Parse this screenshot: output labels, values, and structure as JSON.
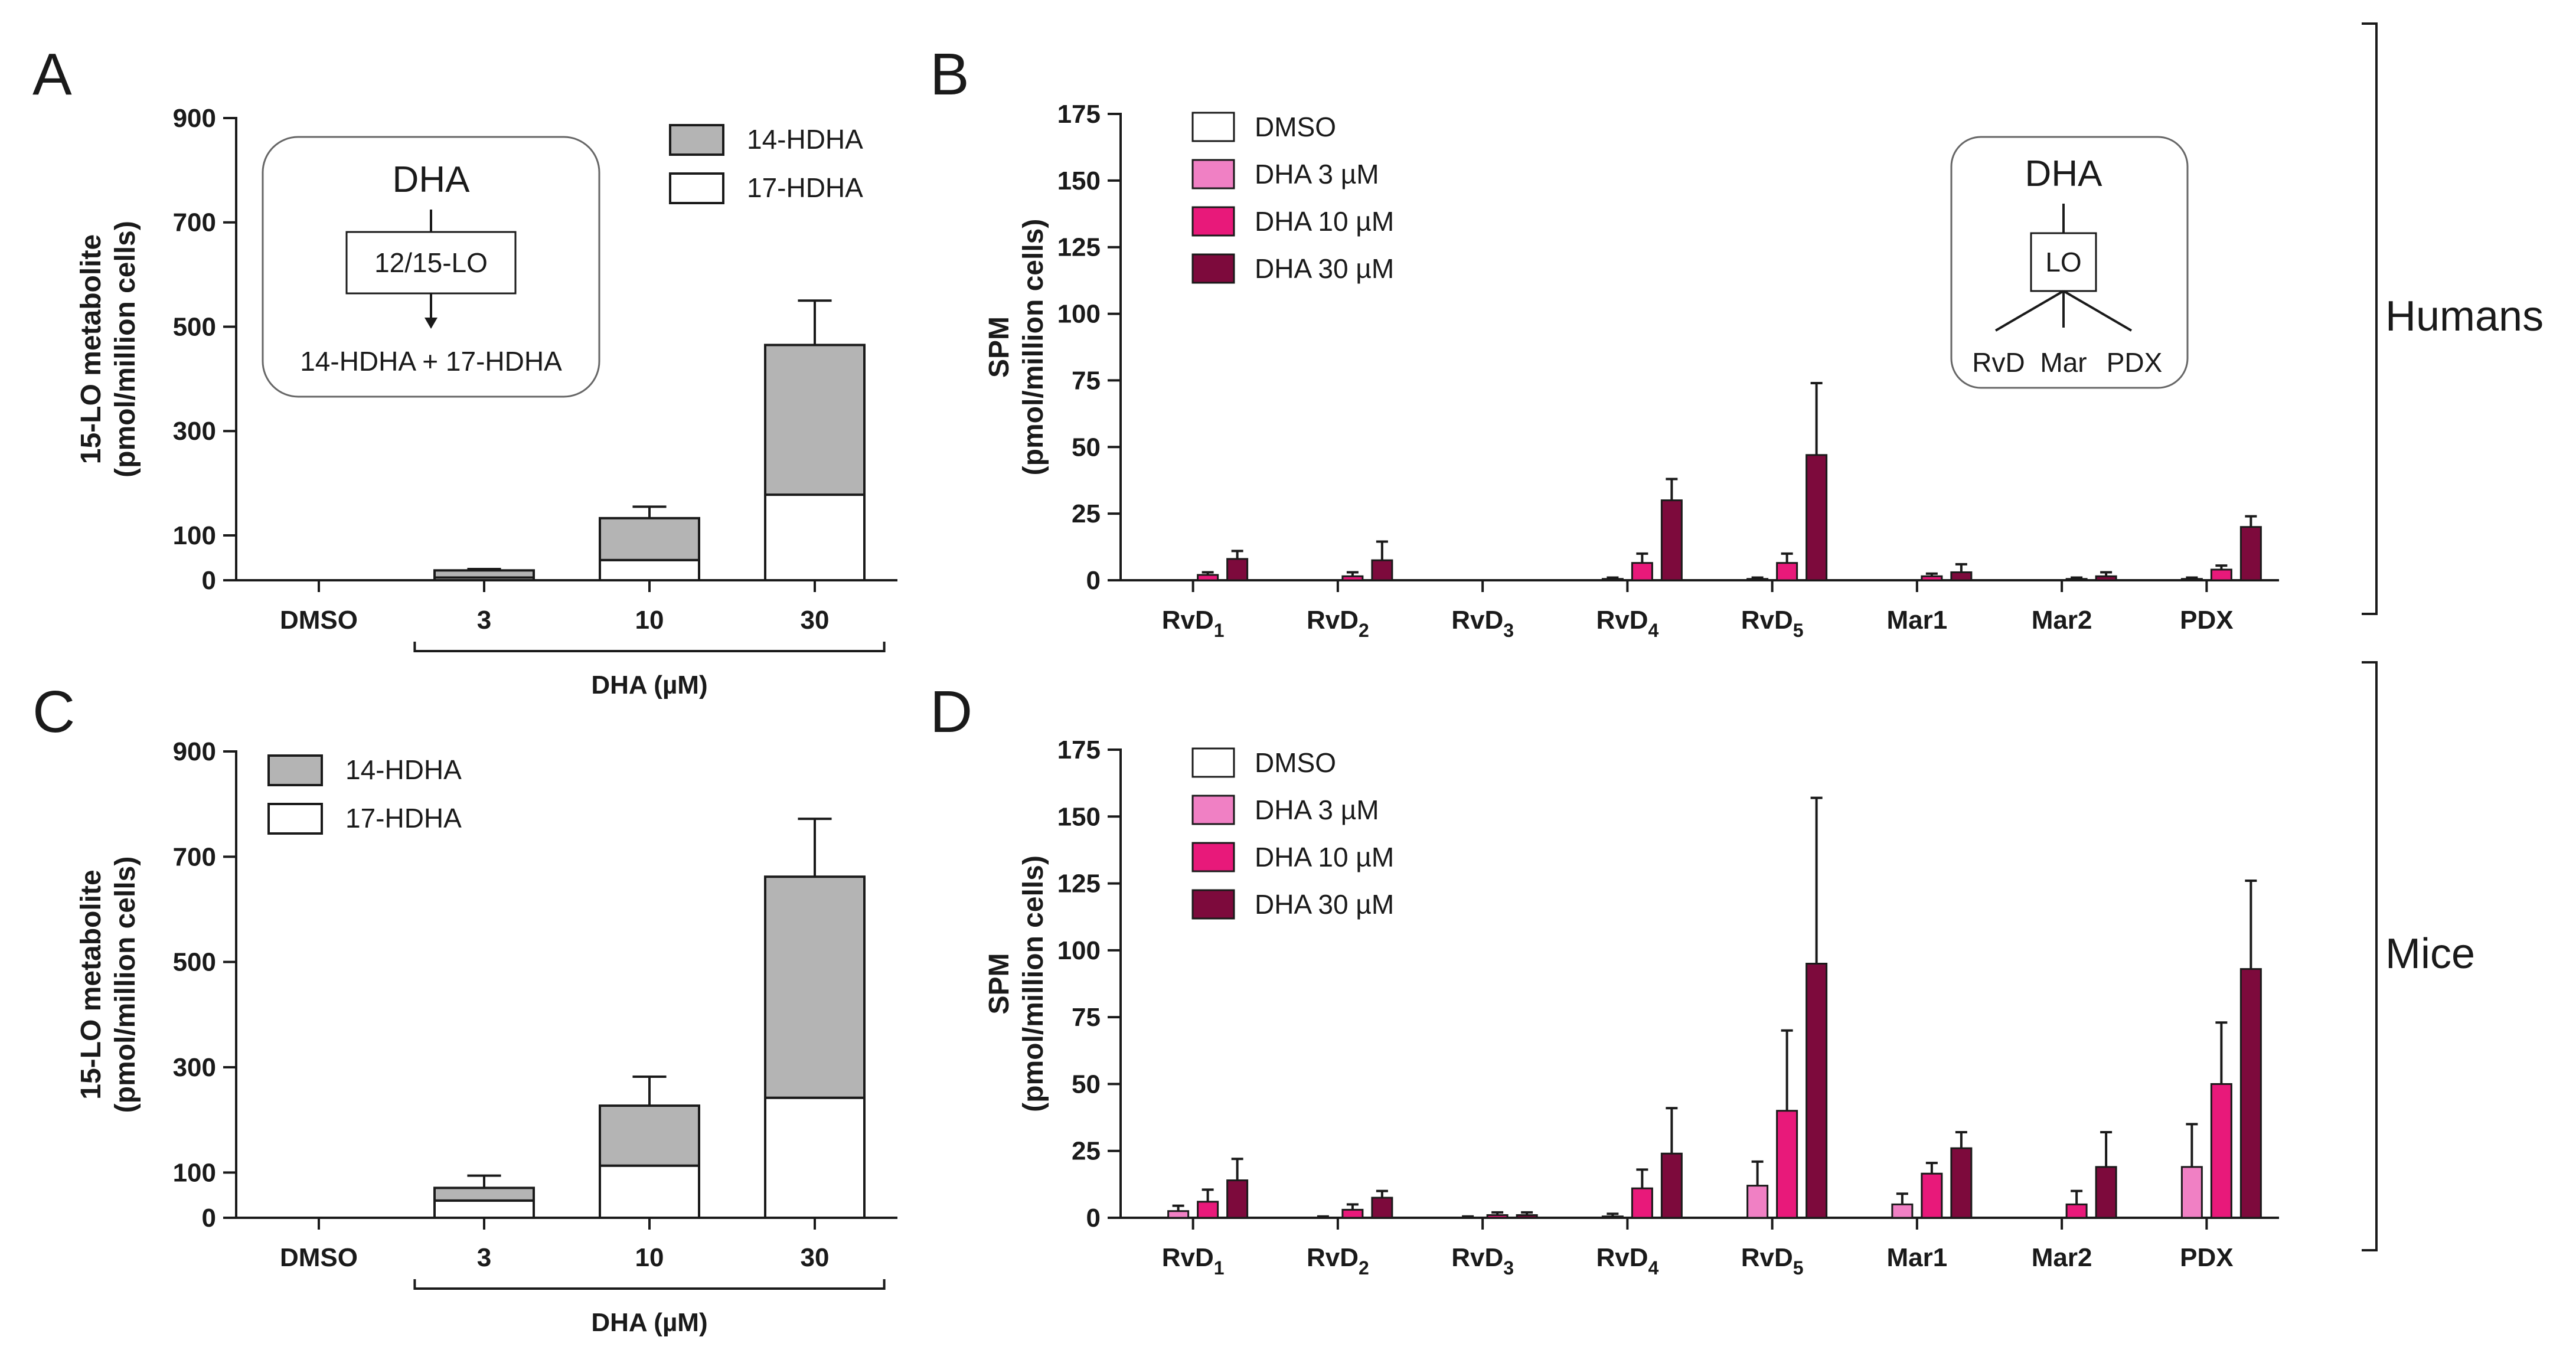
{
  "chart_data": [
    {
      "panel": "A",
      "type": "bar",
      "stacked": true,
      "ylabel_line1": "15-LO metabolite",
      "ylabel_line2": "(pmol/million cells)",
      "yticks": [
        0,
        100,
        300,
        500,
        700,
        900
      ],
      "ylim": [
        0,
        900
      ],
      "categories": [
        "DMSO",
        "3",
        "10",
        "30"
      ],
      "xgroup_label": "DHA (µM)",
      "series": [
        {
          "name": "17-HDHA",
          "color": "#ffffff",
          "values": [
            0,
            6,
            45,
            178
          ],
          "errors": [
            0,
            3,
            15,
            80
          ]
        },
        {
          "name": "14-HDHA",
          "color": "#b4b4b4",
          "values": [
            0,
            16,
            88,
            287
          ],
          "errors": [
            0,
            3,
            22,
            85
          ]
        }
      ],
      "legend": [
        "14-HDHA",
        "17-HDHA"
      ],
      "inset": {
        "title": "DHA",
        "enzyme": "12/15-LO",
        "products": "14-HDHA + 17-HDHA"
      }
    },
    {
      "panel": "B",
      "type": "bar",
      "ylabel_line1": "SPM",
      "ylabel_line2": "(pmol/million cells)",
      "yticks": [
        0,
        25,
        50,
        75,
        100,
        125,
        150,
        175
      ],
      "ylim": [
        0,
        175
      ],
      "categories": [
        "RvD|1",
        "RvD|2",
        "RvD|3",
        "RvD|4",
        "RvD|5",
        "Mar1",
        "Mar2",
        "PDX"
      ],
      "series": [
        {
          "name": "DMSO",
          "color": "#ffffff",
          "values": [
            0,
            0,
            0,
            0,
            0,
            0,
            0,
            0
          ],
          "errors": [
            0,
            0,
            0,
            0,
            0,
            0,
            0,
            0
          ]
        },
        {
          "name": "DHA 3 µM",
          "color": "#f080c4",
          "values": [
            0,
            0,
            0,
            0.5,
            0.5,
            0,
            0,
            0.5
          ],
          "errors": [
            0,
            0,
            0,
            0.5,
            0.5,
            0,
            0,
            0.5
          ]
        },
        {
          "name": "DHA 10 µM",
          "color": "#e8197a",
          "values": [
            2,
            1.5,
            0,
            6.5,
            6.5,
            1.5,
            0.5,
            4
          ],
          "errors": [
            1,
            1.5,
            0,
            3.5,
            3.5,
            1,
            0.5,
            1.5
          ]
        },
        {
          "name": "DHA 30 µM",
          "color": "#7d0a3c",
          "values": [
            8,
            7.5,
            0,
            30,
            47,
            3,
            1.5,
            20
          ],
          "errors": [
            3,
            7,
            0,
            8,
            27,
            3,
            1.5,
            4
          ]
        }
      ],
      "inset": {
        "title": "DHA",
        "enzyme": "LO",
        "products": [
          "RvD",
          "Mar",
          "PDX"
        ]
      }
    },
    {
      "panel": "C",
      "type": "bar",
      "stacked": true,
      "ylabel_line1": "15-LO metabolite",
      "ylabel_line2": "(pmol/million cells)",
      "yticks": [
        0,
        100,
        300,
        500,
        700,
        900
      ],
      "ylim": [
        0,
        900
      ],
      "categories": [
        "DMSO",
        "3",
        "10",
        "30"
      ],
      "xgroup_label": "DHA (µM)",
      "series": [
        {
          "name": "17-HDHA",
          "color": "#ffffff",
          "values": [
            0,
            38,
            113,
            242
          ],
          "errors": [
            0,
            13,
            25,
            45
          ]
        },
        {
          "name": "14-HDHA",
          "color": "#b4b4b4",
          "values": [
            0,
            28,
            114,
            420
          ],
          "errors": [
            0,
            27,
            55,
            110
          ]
        }
      ],
      "legend": [
        "14-HDHA",
        "17-HDHA"
      ]
    },
    {
      "panel": "D",
      "type": "bar",
      "ylabel_line1": "SPM",
      "ylabel_line2": "(pmol/million cells)",
      "yticks": [
        0,
        25,
        50,
        75,
        100,
        125,
        150,
        175
      ],
      "ylim": [
        0,
        175
      ],
      "categories": [
        "RvD|1",
        "RvD|2",
        "RvD|3",
        "RvD|4",
        "RvD|5",
        "Mar1",
        "Mar2",
        "PDX"
      ],
      "series": [
        {
          "name": "DMSO",
          "color": "#ffffff",
          "values": [
            0,
            0,
            0,
            0,
            0,
            0,
            0,
            0
          ],
          "errors": [
            0,
            0,
            0,
            0,
            0,
            0,
            0,
            0
          ]
        },
        {
          "name": "DHA 3 µM",
          "color": "#f080c4",
          "values": [
            2.5,
            0,
            0,
            0.5,
            12,
            5,
            0,
            19
          ],
          "errors": [
            2,
            0.5,
            0.5,
            1,
            9,
            4,
            0,
            16
          ]
        },
        {
          "name": "DHA 10 µM",
          "color": "#e8197a",
          "values": [
            6,
            3,
            1,
            11,
            40,
            16.5,
            5,
            50
          ],
          "errors": [
            4.5,
            2,
            1,
            7,
            30,
            4,
            5,
            23
          ]
        },
        {
          "name": "DHA 30 µM",
          "color": "#7d0a3c",
          "values": [
            14,
            7.5,
            1,
            24,
            95,
            26,
            19,
            93
          ],
          "errors": [
            8,
            2.5,
            1,
            17,
            62,
            6,
            13,
            33
          ]
        }
      ]
    }
  ],
  "panel_letters": [
    "A",
    "B",
    "C",
    "D"
  ],
  "species": {
    "top": "Humans",
    "bottom": "Mice"
  }
}
